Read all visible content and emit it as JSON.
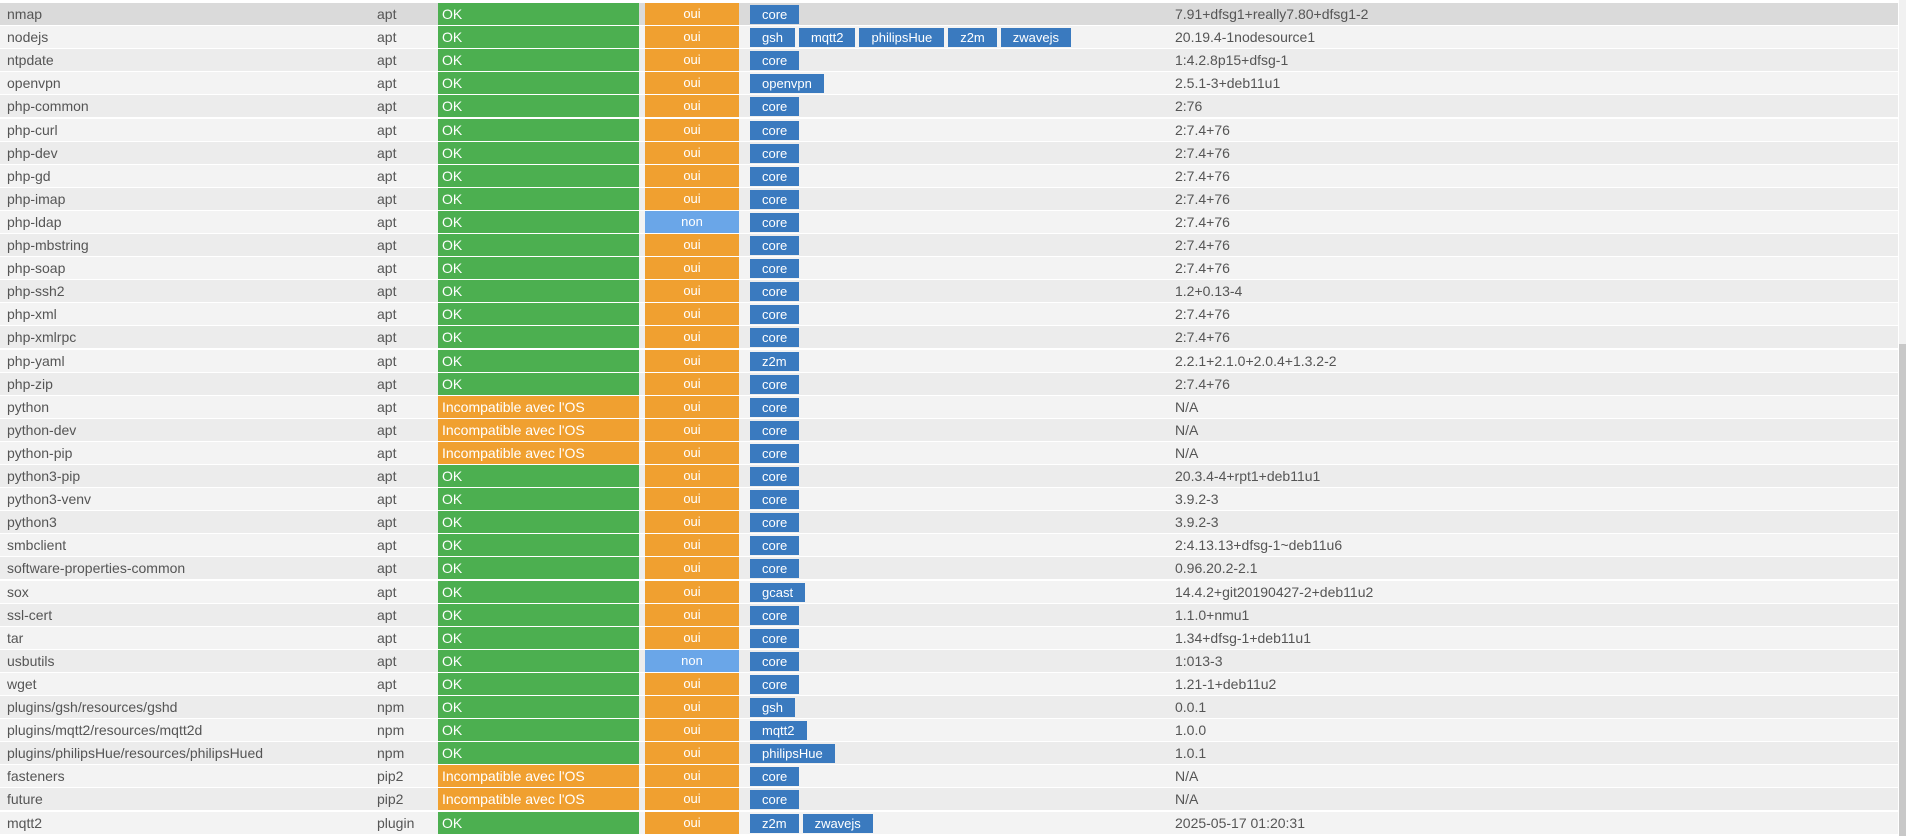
{
  "colors": {
    "OK": "#4caf50",
    "Incompatible avec l'OS": "#f0a030",
    "oui": "#f0a030",
    "non": "#6aa6e8",
    "tag": "#3a7abf"
  },
  "rows": [
    [
      "nmap",
      "apt",
      "OK",
      "oui",
      [
        "core"
      ],
      "7.91+dfsg1+really7.80+dfsg1-2"
    ],
    [
      "nodejs",
      "apt",
      "OK",
      "oui",
      [
        "gsh",
        "mqtt2",
        "philipsHue",
        "z2m",
        "zwavejs"
      ],
      "20.19.4-1nodesource1"
    ],
    [
      "ntpdate",
      "apt",
      "OK",
      "oui",
      [
        "core"
      ],
      "1:4.2.8p15+dfsg-1"
    ],
    [
      "openvpn",
      "apt",
      "OK",
      "oui",
      [
        "openvpn"
      ],
      "2.5.1-3+deb11u1"
    ],
    [
      "php-common",
      "apt",
      "OK",
      "oui",
      [
        "core"
      ],
      "2:76"
    ],
    [
      "php-curl",
      "apt",
      "OK",
      "oui",
      [
        "core"
      ],
      "2:7.4+76"
    ],
    [
      "php-dev",
      "apt",
      "OK",
      "oui",
      [
        "core"
      ],
      "2:7.4+76"
    ],
    [
      "php-gd",
      "apt",
      "OK",
      "oui",
      [
        "core"
      ],
      "2:7.4+76"
    ],
    [
      "php-imap",
      "apt",
      "OK",
      "oui",
      [
        "core"
      ],
      "2:7.4+76"
    ],
    [
      "php-ldap",
      "apt",
      "OK",
      "non",
      [
        "core"
      ],
      "2:7.4+76"
    ],
    [
      "php-mbstring",
      "apt",
      "OK",
      "oui",
      [
        "core"
      ],
      "2:7.4+76"
    ],
    [
      "php-soap",
      "apt",
      "OK",
      "oui",
      [
        "core"
      ],
      "2:7.4+76"
    ],
    [
      "php-ssh2",
      "apt",
      "OK",
      "oui",
      [
        "core"
      ],
      "1.2+0.13-4"
    ],
    [
      "php-xml",
      "apt",
      "OK",
      "oui",
      [
        "core"
      ],
      "2:7.4+76"
    ],
    [
      "php-xmlrpc",
      "apt",
      "OK",
      "oui",
      [
        "core"
      ],
      "2:7.4+76"
    ],
    [
      "php-yaml",
      "apt",
      "OK",
      "oui",
      [
        "z2m"
      ],
      "2.2.1+2.1.0+2.0.4+1.3.2-2"
    ],
    [
      "php-zip",
      "apt",
      "OK",
      "oui",
      [
        "core"
      ],
      "2:7.4+76"
    ],
    [
      "python",
      "apt",
      "Incompatible avec l'OS",
      "oui",
      [
        "core"
      ],
      "N/A"
    ],
    [
      "python-dev",
      "apt",
      "Incompatible avec l'OS",
      "oui",
      [
        "core"
      ],
      "N/A"
    ],
    [
      "python-pip",
      "apt",
      "Incompatible avec l'OS",
      "oui",
      [
        "core"
      ],
      "N/A"
    ],
    [
      "python3-pip",
      "apt",
      "OK",
      "oui",
      [
        "core"
      ],
      "20.3.4-4+rpt1+deb11u1"
    ],
    [
      "python3-venv",
      "apt",
      "OK",
      "oui",
      [
        "core"
      ],
      "3.9.2-3"
    ],
    [
      "python3",
      "apt",
      "OK",
      "oui",
      [
        "core"
      ],
      "3.9.2-3"
    ],
    [
      "smbclient",
      "apt",
      "OK",
      "oui",
      [
        "core"
      ],
      "2:4.13.13+dfsg-1~deb11u6"
    ],
    [
      "software-properties-common",
      "apt",
      "OK",
      "oui",
      [
        "core"
      ],
      "0.96.20.2-2.1"
    ],
    [
      "sox",
      "apt",
      "OK",
      "oui",
      [
        "gcast"
      ],
      "14.4.2+git20190427-2+deb11u2"
    ],
    [
      "ssl-cert",
      "apt",
      "OK",
      "oui",
      [
        "core"
      ],
      "1.1.0+nmu1"
    ],
    [
      "tar",
      "apt",
      "OK",
      "oui",
      [
        "core"
      ],
      "1.34+dfsg-1+deb11u1"
    ],
    [
      "usbutils",
      "apt",
      "OK",
      "non",
      [
        "core"
      ],
      "1:013-3"
    ],
    [
      "wget",
      "apt",
      "OK",
      "oui",
      [
        "core"
      ],
      "1.21-1+deb11u2"
    ],
    [
      "plugins/gsh/resources/gshd",
      "npm",
      "OK",
      "oui",
      [
        "gsh"
      ],
      "0.0.1"
    ],
    [
      "plugins/mqtt2/resources/mqtt2d",
      "npm",
      "OK",
      "oui",
      [
        "mqtt2"
      ],
      "1.0.0"
    ],
    [
      "plugins/philipsHue/resources/philipsHued",
      "npm",
      "OK",
      "oui",
      [
        "philipsHue"
      ],
      "1.0.1"
    ],
    [
      "fasteners",
      "pip2",
      "Incompatible avec l'OS",
      "oui",
      [
        "core"
      ],
      "N/A"
    ],
    [
      "future",
      "pip2",
      "Incompatible avec l'OS",
      "oui",
      [
        "core"
      ],
      "N/A"
    ],
    [
      "mqtt2",
      "plugin",
      "OK",
      "oui",
      [
        "z2m",
        "zwavejs"
      ],
      "2025-05-17 01:20:31"
    ]
  ]
}
